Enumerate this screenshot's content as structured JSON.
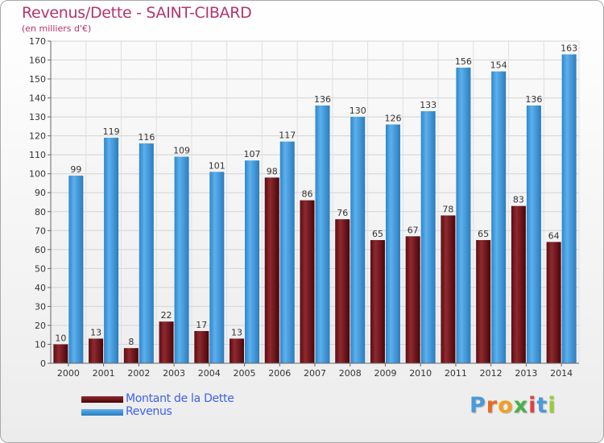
{
  "title": "Revenus/Dette - SAINT-CIBARD",
  "subtitle": "(en milliers d'€)",
  "logo": {
    "text": "Proxiti",
    "letters": [
      "P",
      "r",
      "o",
      "x",
      "i",
      "t",
      "i"
    ],
    "colors": [
      "#4a9ad8",
      "#e86a22",
      "#f0a020",
      "#4ab04a",
      "#e04040",
      "#4a9ad8",
      "#9acd32"
    ]
  },
  "colors": {
    "dette": "#7a1e22",
    "revenus": "#4aa0e0",
    "axis_text": "#333333",
    "title": "#b4346c",
    "legend_text": "#3d62e8"
  },
  "chart_data": {
    "type": "bar",
    "categories": [
      "2000",
      "2001",
      "2002",
      "2003",
      "2004",
      "2005",
      "2006",
      "2007",
      "2008",
      "2009",
      "2010",
      "2011",
      "2012",
      "2013",
      "2014"
    ],
    "series": [
      {
        "name": "Montant de la Dette",
        "values": [
          10,
          13,
          8,
          22,
          17,
          13,
          98,
          86,
          76,
          65,
          67,
          78,
          65,
          83,
          64
        ]
      },
      {
        "name": "Revenus",
        "values": [
          99,
          119,
          116,
          109,
          101,
          107,
          117,
          136,
          130,
          126,
          133,
          156,
          154,
          136,
          163
        ]
      }
    ],
    "yticks": [
      0,
      10,
      20,
      30,
      40,
      50,
      60,
      70,
      80,
      90,
      100,
      110,
      120,
      130,
      140,
      150,
      160,
      170
    ],
    "ylim": [
      0,
      170
    ],
    "grid": true,
    "legend": "bottom-left"
  }
}
